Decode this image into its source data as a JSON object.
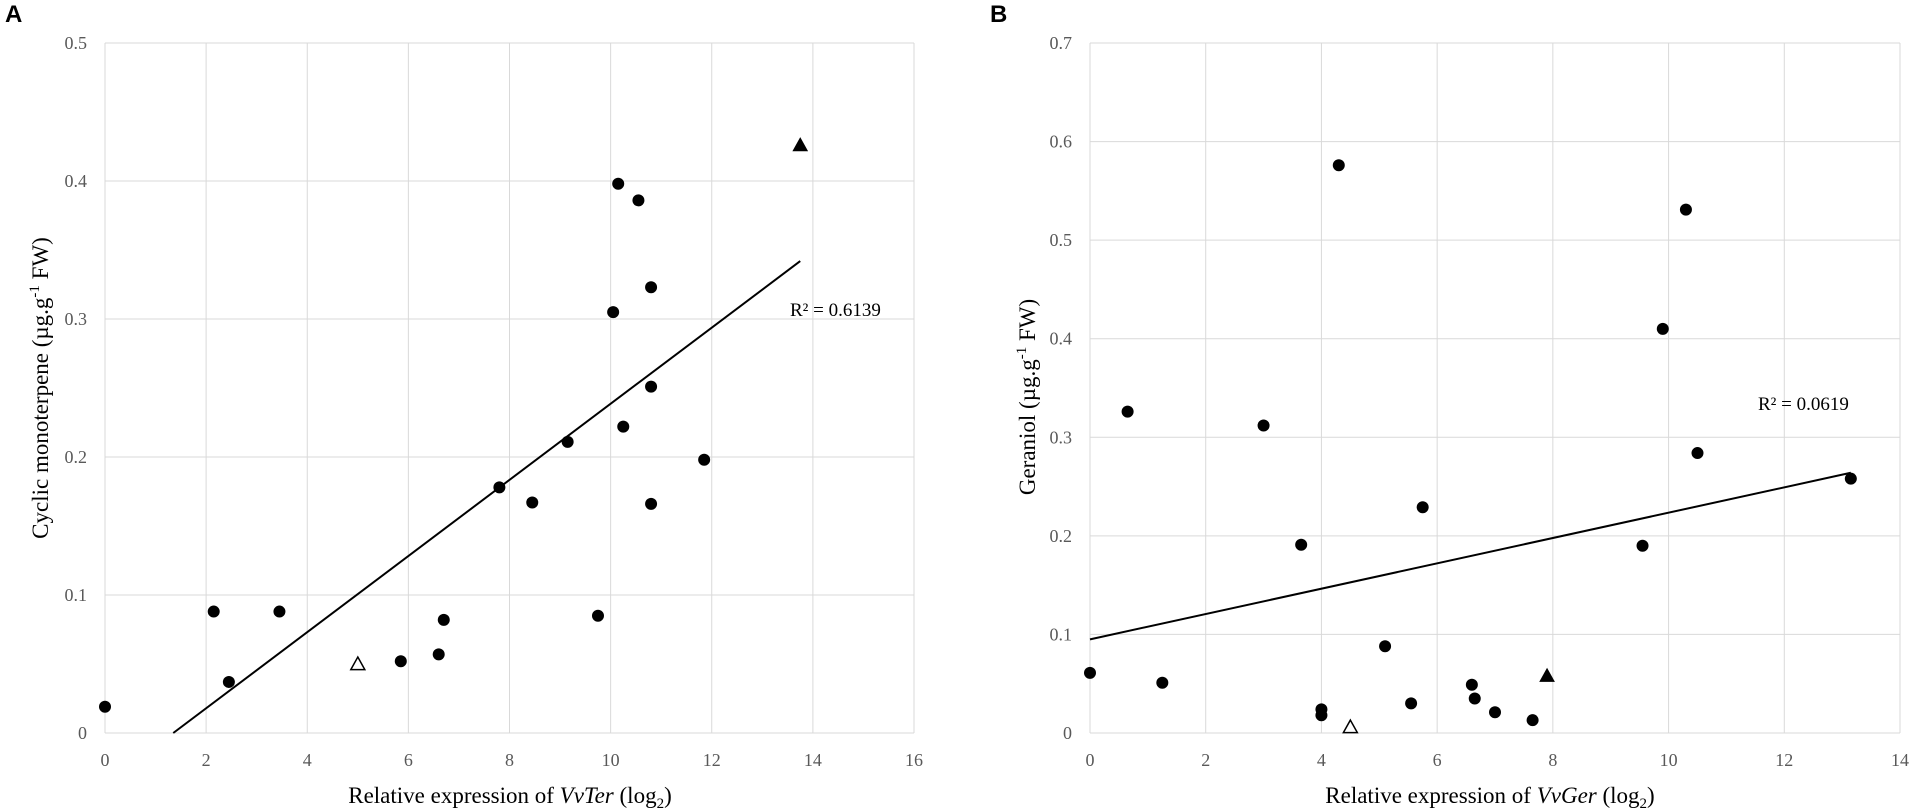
{
  "chart_data": [
    {
      "type": "scatter",
      "panel": "A",
      "xlabel_prefix": "Relative expression of ",
      "xlabel_gene": "VvTer",
      "xlabel_suffix": " (log",
      "xlabel_sub": "2",
      "xlabel_close": ")",
      "ylabel_main": "Cyclic monoterpene (µg.g",
      "ylabel_sup": "-1",
      "ylabel_end": " FW)",
      "xlim": [
        0,
        16
      ],
      "ylim": [
        0,
        0.5
      ],
      "xticks": [
        "0",
        "2",
        "4",
        "6",
        "8",
        "10",
        "12",
        "14",
        "16"
      ],
      "yticks": [
        "0",
        "0.1",
        "0.2",
        "0.3",
        "0.4",
        "0.5"
      ],
      "r2": "R² = 0.6139",
      "trendline": {
        "x": [
          1.35,
          13.75
        ],
        "y": [
          0,
          0.342
        ]
      },
      "points": [
        {
          "x": 0,
          "y": 0.019,
          "marker": "circle"
        },
        {
          "x": 2.15,
          "y": 0.088,
          "marker": "circle"
        },
        {
          "x": 2.45,
          "y": 0.037,
          "marker": "circle"
        },
        {
          "x": 3.45,
          "y": 0.088,
          "marker": "circle"
        },
        {
          "x": 5.85,
          "y": 0.052,
          "marker": "circle"
        },
        {
          "x": 6.6,
          "y": 0.057,
          "marker": "circle"
        },
        {
          "x": 6.7,
          "y": 0.082,
          "marker": "circle"
        },
        {
          "x": 7.8,
          "y": 0.178,
          "marker": "circle"
        },
        {
          "x": 8.45,
          "y": 0.167,
          "marker": "circle"
        },
        {
          "x": 9.15,
          "y": 0.211,
          "marker": "circle"
        },
        {
          "x": 9.75,
          "y": 0.085,
          "marker": "circle"
        },
        {
          "x": 10.05,
          "y": 0.305,
          "marker": "circle"
        },
        {
          "x": 10.15,
          "y": 0.398,
          "marker": "circle"
        },
        {
          "x": 10.25,
          "y": 0.222,
          "marker": "circle"
        },
        {
          "x": 10.55,
          "y": 0.386,
          "marker": "circle"
        },
        {
          "x": 10.8,
          "y": 0.323,
          "marker": "circle"
        },
        {
          "x": 10.8,
          "y": 0.251,
          "marker": "circle"
        },
        {
          "x": 10.8,
          "y": 0.166,
          "marker": "circle"
        },
        {
          "x": 11.85,
          "y": 0.198,
          "marker": "circle"
        },
        {
          "x": 5.0,
          "y": 0.05,
          "marker": "triangle-open"
        },
        {
          "x": 13.75,
          "y": 0.426,
          "marker": "triangle-filled"
        }
      ]
    },
    {
      "type": "scatter",
      "panel": "B",
      "xlabel_prefix": "Relative expression of ",
      "xlabel_gene": "VvGer",
      "xlabel_suffix": " (log",
      "xlabel_sub": "2",
      "xlabel_close": ")",
      "ylabel_main": "Geraniol (µg.g",
      "ylabel_sup": "-1",
      "ylabel_end": " FW)",
      "xlim": [
        0,
        14
      ],
      "ylim": [
        0,
        0.7
      ],
      "xticks": [
        "0",
        "2",
        "4",
        "6",
        "8",
        "10",
        "12",
        "14"
      ],
      "yticks": [
        "0",
        "0.1",
        "0.2",
        "0.3",
        "0.4",
        "0.5",
        "0.6",
        "0.7"
      ],
      "r2": "R² = 0.0619",
      "trendline": {
        "x": [
          0,
          13.15
        ],
        "y": [
          0.095,
          0.264
        ]
      },
      "points": [
        {
          "x": 0,
          "y": 0.061,
          "marker": "circle"
        },
        {
          "x": 0.65,
          "y": 0.326,
          "marker": "circle"
        },
        {
          "x": 1.25,
          "y": 0.051,
          "marker": "circle"
        },
        {
          "x": 3.0,
          "y": 0.312,
          "marker": "circle"
        },
        {
          "x": 3.65,
          "y": 0.191,
          "marker": "circle"
        },
        {
          "x": 4.0,
          "y": 0.024,
          "marker": "circle"
        },
        {
          "x": 4.0,
          "y": 0.018,
          "marker": "circle"
        },
        {
          "x": 4.3,
          "y": 0.576,
          "marker": "circle"
        },
        {
          "x": 5.1,
          "y": 0.088,
          "marker": "circle"
        },
        {
          "x": 5.55,
          "y": 0.03,
          "marker": "circle"
        },
        {
          "x": 5.75,
          "y": 0.229,
          "marker": "circle"
        },
        {
          "x": 6.6,
          "y": 0.049,
          "marker": "circle"
        },
        {
          "x": 6.65,
          "y": 0.035,
          "marker": "circle"
        },
        {
          "x": 7.0,
          "y": 0.021,
          "marker": "circle"
        },
        {
          "x": 7.65,
          "y": 0.013,
          "marker": "circle"
        },
        {
          "x": 9.55,
          "y": 0.19,
          "marker": "circle"
        },
        {
          "x": 9.9,
          "y": 0.41,
          "marker": "circle"
        },
        {
          "x": 10.3,
          "y": 0.531,
          "marker": "circle"
        },
        {
          "x": 10.5,
          "y": 0.284,
          "marker": "circle"
        },
        {
          "x": 13.15,
          "y": 0.258,
          "marker": "circle"
        },
        {
          "x": 4.5,
          "y": 0.006,
          "marker": "triangle-open"
        },
        {
          "x": 7.9,
          "y": 0.058,
          "marker": "triangle-filled"
        }
      ]
    }
  ]
}
